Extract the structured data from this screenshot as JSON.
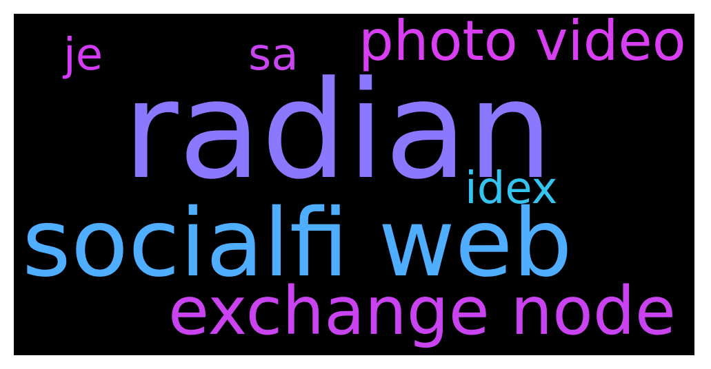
{
  "words": [
    {
      "id": "radian",
      "text": "radian",
      "color": "#8a78ff"
    },
    {
      "id": "socialfi",
      "text": "socialfi web",
      "color": "#4faeff"
    },
    {
      "id": "exchange",
      "text": "exchange node",
      "color": "#c943f0"
    },
    {
      "id": "photo",
      "text": "photo video",
      "color": "#d93ff2"
    },
    {
      "id": "je",
      "text": "je",
      "color": "#d33bf4"
    },
    {
      "id": "sa",
      "text": "sa",
      "color": "#c845f0"
    },
    {
      "id": "idex",
      "text": "idex",
      "color": "#35c4ef"
    }
  ],
  "background_color": "#000000"
}
